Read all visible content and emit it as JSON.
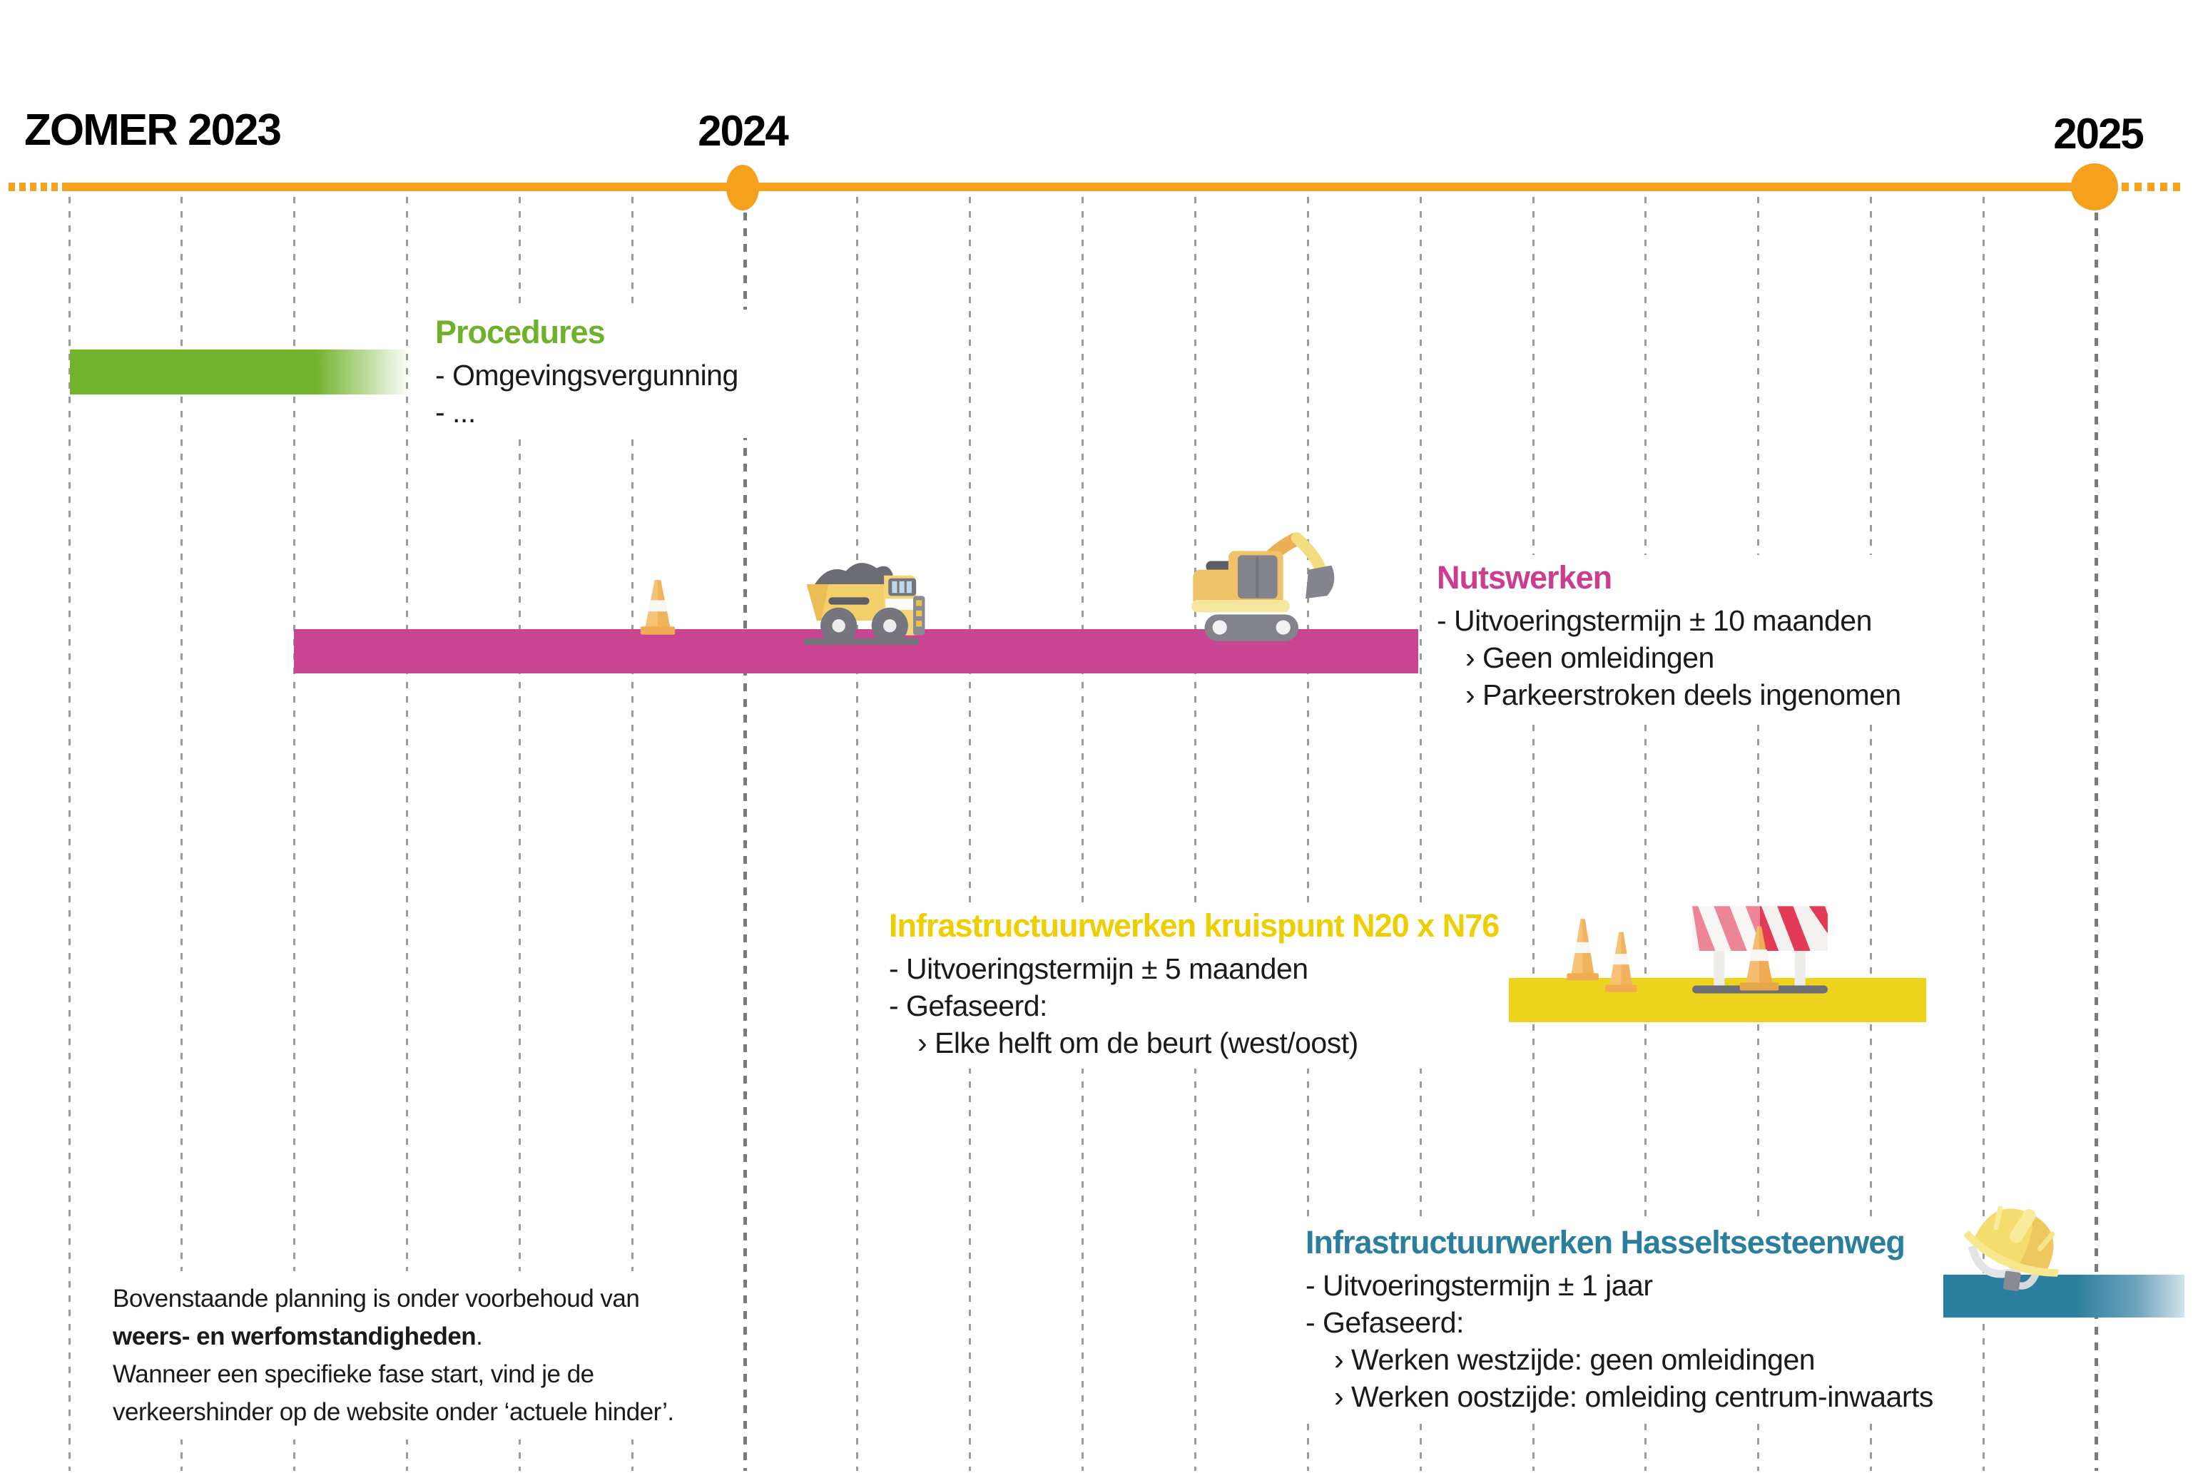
{
  "timeline": {
    "start_label": "ZOMER 2023",
    "mid_label": "2024",
    "end_label": "2025",
    "axis_color": "#F5A11E"
  },
  "phases": [
    {
      "id": "procedures",
      "title": "Procedures",
      "color": "#71B32C",
      "lines": [
        "- Omgevingsvergunning",
        "- ..."
      ],
      "icons": []
    },
    {
      "id": "nutswerken",
      "title": "Nutswerken",
      "color": "#CA4591",
      "lines": [
        "- Uitvoeringstermijn ± 10 maanden",
        "› Geen omleidingen",
        "› Parkeerstroken deels ingenomen"
      ],
      "icons": [
        "traffic-cone",
        "dump-truck",
        "excavator"
      ]
    },
    {
      "id": "kruispunt-n20-n76",
      "title": "Infrastructuurwerken kruispunt N20 x N76",
      "color": "#EDD41C",
      "lines": [
        "- Uitvoeringstermijn ± 5 maanden",
        "- Gefaseerd:",
        "› Elke helft om de beurt (west/oost)"
      ],
      "icons": [
        "traffic-cones",
        "roadblock-barrier"
      ]
    },
    {
      "id": "hasseltsesteenweg",
      "title": "Infrastructuurwerken Hasseltsesteenweg",
      "color": "#2A7F9E",
      "lines": [
        "- Uitvoeringstermijn ± 1 jaar",
        "- Gefaseerd:",
        "› Werken westzijde: geen omleidingen",
        "› Werken oostzijde: omleiding centrum-inwaarts"
      ],
      "icons": [
        "hard-hat"
      ]
    }
  ],
  "footnote": {
    "line1": "Bovenstaande planning is onder voorbehoud van",
    "line2_bold": "weers- en werfomstandigheden",
    "line2_rest": ".",
    "line3": "Wanneer een specifieke fase start, vind je de",
    "line4": "verkeershinder op de website onder ‘actuele hinder’."
  }
}
